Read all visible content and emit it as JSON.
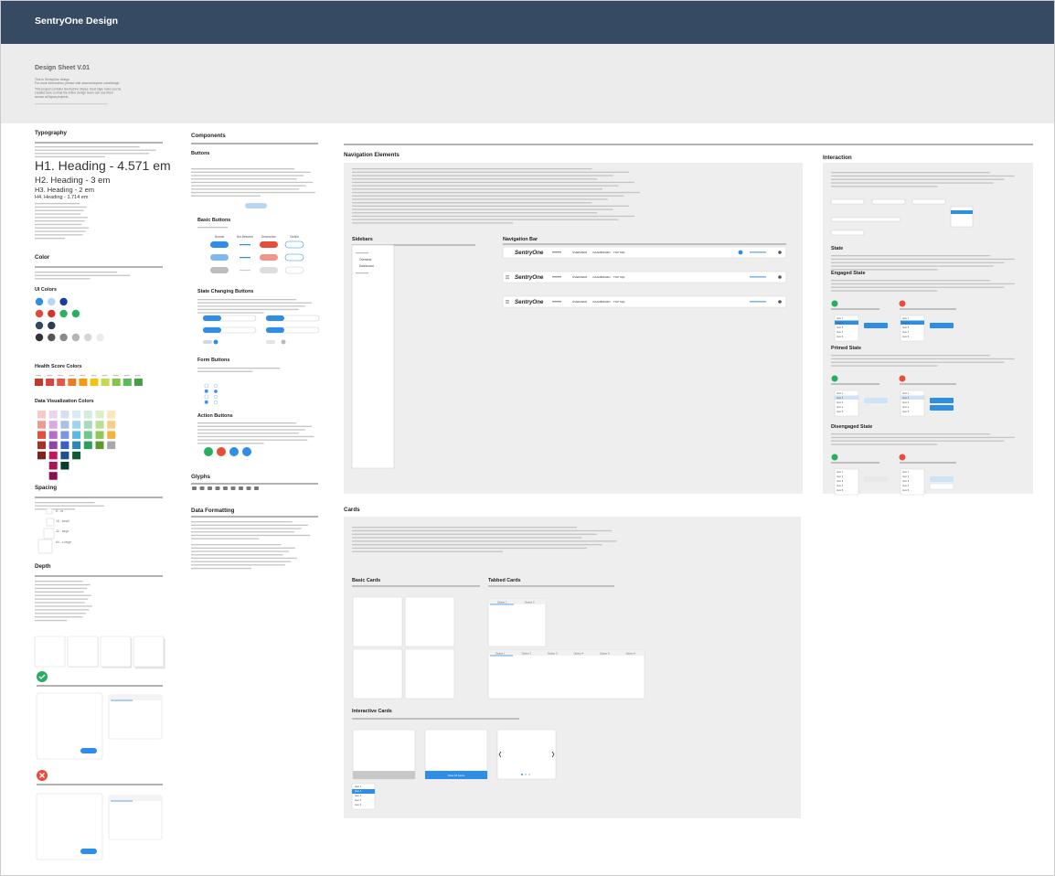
{
  "header": {
    "title": "SentryOne Design"
  },
  "intro": {
    "title": "Design Sheet V.01",
    "lines": [
      "This is SentryOne design",
      "For more information, please visit www.sentryone.com/design",
      "This project contains SentryOne Styles. Best style rules can be",
      "created here so that the entire design team can use them",
      "across all figma projects."
    ]
  },
  "typography": {
    "title": "Typography",
    "headings": [
      "H1. Heading - 4.571 em",
      "H2. Heading - 3 em",
      "H3. Heading - 2 em",
      "H4. Heading - 1.714 em"
    ]
  },
  "color": {
    "title": "Color",
    "ui_title": "UI Colors",
    "ui": [
      [
        "#2e8de4",
        "#b9d5f2",
        "#1d3f9c"
      ],
      [
        "#e2493a",
        "#d2332b",
        "#2fb15f",
        "#27ae60"
      ],
      [
        "#34495e",
        "#2c3e50"
      ],
      [
        "#333333",
        "#555555",
        "#8a8a8a",
        "#b5b5b5",
        "#d6d6d6",
        "#ececec"
      ]
    ],
    "health_title": "Health Score Colors",
    "health": [
      "#c0392b",
      "#d64541",
      "#e2574c",
      "#e67e22",
      "#f39c12",
      "#f1c40f",
      "#c5d94a",
      "#8bc34a",
      "#5cb85c",
      "#43a047"
    ],
    "dataviz_title": "Data Visualization Colors",
    "dataviz": [
      [
        "#f7c9c5",
        "#e8d5ee",
        "#d6dff0",
        "#d8ecf7",
        "#d3ecdc",
        "#dbeec9",
        "#fbe6bd"
      ],
      [
        "#ef9a91",
        "#d9a9e0",
        "#a9c0e8",
        "#9ed3ef",
        "#a5dcb9",
        "#b8dd95",
        "#f8cf82"
      ],
      [
        "#e74c3c",
        "#b46ec7",
        "#7896dc",
        "#5ab8e6",
        "#6bc98f",
        "#8cc957",
        "#f3b33b"
      ],
      [
        "#a93226",
        "#8e44ad",
        "#3a5fc5",
        "#2e86c1",
        "#2b9f5c",
        "#5a9c2a",
        "#a9a9a9"
      ],
      [
        "#7b241c",
        "#c2185b",
        "#1f4f8d",
        "#145a32"
      ],
      [
        null,
        "#ad1457",
        "#0b3d2e"
      ],
      [
        null,
        "#880e4f"
      ]
    ]
  },
  "spacing": {
    "title": "Spacing",
    "sizes": [
      "8 - xs",
      "16 - small",
      "32 - large",
      "64 - x-large"
    ]
  },
  "depth": {
    "title": "Depth"
  },
  "components": {
    "title": "Components",
    "buttons": "Buttons",
    "basic_buttons": "Basic Buttons",
    "button_headers": [
      "Normal",
      "Not Between",
      "Destructive",
      "Outline"
    ],
    "state_changing": "State Changing Buttons",
    "form_buttons": "Form Buttons",
    "action_buttons": "Action Buttons",
    "glyphs": "Glyphs",
    "data_formatting": "Data Formatting"
  },
  "navigation": {
    "title": "Navigation Elements",
    "sidebars": "Sidebars",
    "sidebar_items": [
      "Overview",
      "Dashboard"
    ],
    "navbar": "Navigation Bar",
    "brand": "SentryOne",
    "menu": [
      "OVERVIEW",
      "DASHBOARD",
      "TOP SQL"
    ]
  },
  "cards": {
    "title": "Cards",
    "basic": "Basic Cards",
    "tabbed": "Tabbed Cards",
    "tabs": [
      "Option 1",
      "Option 2",
      "Option 3",
      "Option 4",
      "Option 5",
      "Option 6"
    ],
    "interactive": "Interactive Cards",
    "card_button": "View All Items"
  },
  "interaction": {
    "title": "Interaction",
    "state": "State",
    "engaged": "Engaged State",
    "primed": "Primed State",
    "disengaged": "Disengaged State",
    "items": [
      "Item 1",
      "Item 2",
      "Item 3",
      "Item 4",
      "Item 5"
    ]
  }
}
